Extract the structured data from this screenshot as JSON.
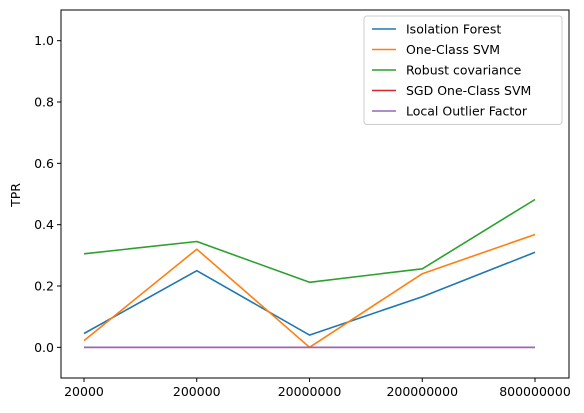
{
  "chart_data": {
    "type": "line",
    "title": "",
    "xlabel": "",
    "ylabel": "TPR",
    "categories": [
      "20000",
      "200000",
      "20000000",
      "200000000",
      "800000000"
    ],
    "ylim": [
      -0.1,
      1.1
    ],
    "yticks": [
      0.0,
      0.2,
      0.4,
      0.6,
      0.8,
      1.0
    ],
    "ytick_labels": [
      "0.0",
      "0.2",
      "0.4",
      "0.6",
      "0.8",
      "1.0"
    ],
    "grid": false,
    "legend_position": "top-right",
    "series": [
      {
        "name": "Isolation Forest",
        "color": "#1f77b4",
        "values": [
          0.045,
          0.25,
          0.04,
          0.165,
          0.31
        ]
      },
      {
        "name": "One-Class SVM",
        "color": "#ff7f0e",
        "values": [
          0.022,
          0.32,
          0.0,
          0.24,
          0.368
        ]
      },
      {
        "name": "Robust covariance",
        "color": "#2ca02c",
        "values": [
          0.305,
          0.345,
          0.212,
          0.256,
          0.482
        ]
      },
      {
        "name": "SGD One-Class SVM",
        "color": "#d62728",
        "values": [
          0.0,
          0.0,
          0.0,
          0.0,
          0.0
        ]
      },
      {
        "name": "Local Outlier Factor",
        "color": "#9467bd",
        "values": [
          0.0,
          0.0,
          0.0,
          0.0,
          0.0
        ]
      }
    ]
  }
}
